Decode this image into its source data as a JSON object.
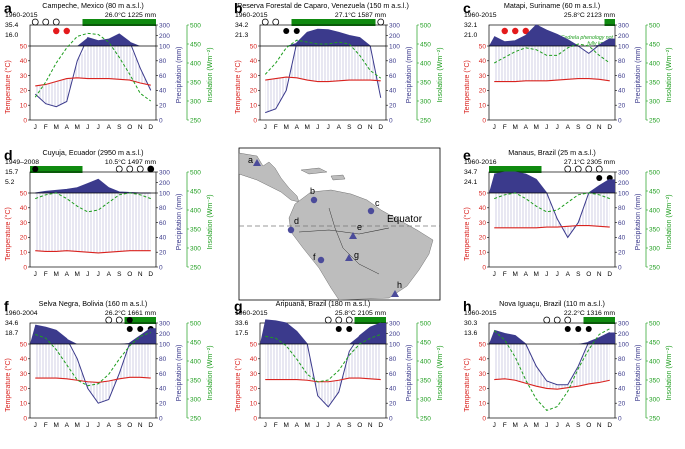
{
  "colors": {
    "precip_fill": "#3b3a8c",
    "precip_line": "#3b3a8c",
    "humid_hatch": "#c5c4de",
    "arid_fill": "#ffffff",
    "temperature": "#d9231f",
    "insolation": "#1f9e1f",
    "green_bar": "#0f8a0f",
    "red_dot": "#e41a1c",
    "map_land": "#bdbdbd",
    "map_marker": "#4b4b9a"
  },
  "axes": {
    "temperature_label": "Temperature (°C)",
    "precipitation_label": "Precipitation (mm)",
    "insolation_label": "Insolation (Wm⁻²)",
    "months": [
      "J",
      "F",
      "M",
      "A",
      "M",
      "J",
      "J",
      "A",
      "S",
      "O",
      "N",
      "D"
    ],
    "temp_ticks": [
      "0",
      "10",
      "20",
      "30",
      "40",
      "50"
    ],
    "precip_ticks": [
      "0",
      "20",
      "40",
      "60",
      "80",
      "100",
      "200",
      "300"
    ],
    "insol_ticks": [
      "250",
      "300",
      "350",
      "400",
      "450",
      "500"
    ]
  },
  "map": {
    "equator_label": "Equator",
    "markers": [
      "a",
      "b",
      "c",
      "d",
      "e",
      "f",
      "g",
      "h"
    ]
  },
  "chart_data": [
    {
      "letter": "a",
      "type": "climate-diagram",
      "title": "Campeche, Mexico (80 m a.s.l.)",
      "period": "1960-2015",
      "summary": "26.0°C 1225 mm",
      "max_temp": "35.4",
      "min_temp": "16.0",
      "green_bar_months": [
        6,
        12
      ],
      "open_dots_row1": [
        1,
        2,
        3
      ],
      "red_dots_row2": [
        3,
        4
      ],
      "filled_dots_row2": [],
      "open_dots_row2": [],
      "filled_dots_row1": [],
      "note": "",
      "precip": [
        35,
        22,
        18,
        25,
        80,
        180,
        150,
        165,
        215,
        140,
        70,
        40
      ],
      "temp": [
        23,
        24,
        26,
        28,
        28.5,
        28,
        28,
        28,
        27.5,
        27,
        25,
        23.5
      ],
      "insol": [
        310,
        350,
        400,
        440,
        470,
        478,
        475,
        455,
        415,
        370,
        320,
        300
      ]
    },
    {
      "letter": "b",
      "type": "climate-diagram",
      "title": "Reserva Forestal de Caparo, Venezuela (150 m a.s.l.)",
      "period": "1960-2015",
      "summary": "27.1°C 1587 mm",
      "max_temp": "34.2",
      "min_temp": "21.3",
      "green_bar_months": [
        4,
        11
      ],
      "open_dots_row1": [
        1,
        2,
        12
      ],
      "red_dots_row2": [],
      "filled_dots_row2": [
        3,
        4
      ],
      "open_dots_row2": [],
      "filled_dots_row1": [],
      "note": "",
      "precip": [
        10,
        15,
        40,
        130,
        230,
        260,
        255,
        230,
        200,
        180,
        100,
        30
      ],
      "temp": [
        27,
        28,
        29,
        28.5,
        27,
        26,
        26,
        26.5,
        27,
        27,
        27,
        26.5
      ],
      "insol": [
        370,
        400,
        440,
        460,
        455,
        450,
        450,
        455,
        450,
        420,
        380,
        360
      ]
    },
    {
      "letter": "c",
      "type": "climate-diagram",
      "title": "Matapi, Suriname (60 m a.s.l.)",
      "period": "1960-2015",
      "summary": "25.8°C 2123 mm",
      "max_temp": "32.1",
      "min_temp": "21.0",
      "green_bar_months": [
        12,
        12
      ],
      "open_dots_row1": [],
      "red_dots_row2": [
        2,
        3,
        4
      ],
      "filled_dots_row2": [],
      "open_dots_row2": [],
      "filled_dots_row1": [],
      "note": "Cedrela phenology not fully known",
      "precip": [
        190,
        140,
        150,
        200,
        300,
        250,
        210,
        160,
        100,
        90,
        110,
        170
      ],
      "temp": [
        26,
        26,
        26,
        26.5,
        26.5,
        26.5,
        27,
        27.5,
        28,
        28,
        27.5,
        26.5
      ],
      "insol": [
        400,
        415,
        430,
        440,
        435,
        420,
        420,
        440,
        450,
        445,
        420,
        400
      ]
    },
    {
      "letter": "d",
      "type": "climate-diagram",
      "title": "Cuyuja, Ecuador (2950 m a.s.l.)",
      "period": "1949–2008",
      "summary": "10.5°C 1497 mm",
      "max_temp": "15.7",
      "min_temp": "5.2",
      "green_bar_months": [
        1,
        5
      ],
      "open_dots_row1": [
        9,
        10,
        11,
        12
      ],
      "red_dots_row2": [],
      "filled_dots_row2": [],
      "open_dots_row2": [],
      "filled_dots_row1": [
        1,
        12
      ],
      "note": "",
      "precip": [
        100,
        115,
        125,
        135,
        150,
        190,
        230,
        150,
        110,
        105,
        100,
        100
      ],
      "temp": [
        11,
        10.5,
        10.5,
        11,
        10.5,
        10,
        9.5,
        10,
        10.5,
        11,
        11,
        11
      ],
      "insol": [
        430,
        440,
        445,
        430,
        410,
        395,
        400,
        420,
        440,
        445,
        440,
        430
      ]
    },
    {
      "letter": "e",
      "type": "climate-diagram",
      "title": "Manaus, Brazil (25 m a.s.l.)",
      "period": "1960-2016",
      "summary": "27.1°C 2305 mm",
      "max_temp": "34.7",
      "min_temp": "24.1",
      "green_bar_months": [
        1,
        5
      ],
      "open_dots_row1": [
        8,
        9,
        10,
        11
      ],
      "red_dots_row2": [],
      "filled_dots_row2": [
        11,
        12
      ],
      "open_dots_row2": [],
      "filled_dots_row1": [],
      "note": "",
      "precip": [
        280,
        300,
        300,
        280,
        230,
        100,
        65,
        40,
        60,
        100,
        170,
        230
      ],
      "temp": [
        26.5,
        26.5,
        26.5,
        26.5,
        26.5,
        27,
        27,
        27.5,
        28,
        28,
        27.5,
        27
      ],
      "insol": [
        430,
        440,
        445,
        430,
        410,
        395,
        400,
        420,
        440,
        445,
        440,
        430
      ]
    },
    {
      "letter": "f",
      "type": "climate-diagram",
      "title": "Selva Negra, Bolivia (160 m a.s.l.)",
      "period": "1960-2004",
      "summary": "26.2°C 1661 mm",
      "max_temp": "34.6",
      "min_temp": "18.7",
      "green_bar_months": [
        10,
        12
      ],
      "open_dots_row1": [
        8,
        9
      ],
      "red_dots_row2": [],
      "filled_dots_row2": [
        10,
        11,
        12
      ],
      "open_dots_row2": [],
      "filled_dots_row1": [
        10
      ],
      "note": "",
      "precip": [
        280,
        260,
        230,
        150,
        80,
        40,
        20,
        25,
        60,
        110,
        180,
        250
      ],
      "temp": [
        27,
        27,
        27,
        26.5,
        25.5,
        24.5,
        24,
        25,
        26.5,
        27.5,
        27.5,
        27
      ],
      "insol": [
        470,
        460,
        430,
        390,
        350,
        335,
        340,
        365,
        405,
        440,
        465,
        475
      ]
    },
    {
      "letter": "g",
      "type": "climate-diagram",
      "title": "Aripuanã, Brazil (180 m a.s.l.)",
      "period": "1960-2015",
      "summary": "25.8°C 2105 mm",
      "max_temp": "33.6",
      "min_temp": "17.5",
      "green_bar_months": [
        10,
        12
      ],
      "open_dots_row1": [
        7,
        8,
        9
      ],
      "red_dots_row2": [],
      "filled_dots_row2": [
        8,
        9
      ],
      "open_dots_row2": [],
      "filled_dots_row1": [],
      "note": "",
      "precip": [
        330,
        320,
        300,
        220,
        100,
        30,
        15,
        35,
        90,
        180,
        260,
        300
      ],
      "temp": [
        26,
        26,
        26,
        26,
        25.5,
        24.5,
        24.5,
        25.5,
        27,
        27,
        26.5,
        26
      ],
      "insol": [
        465,
        460,
        440,
        405,
        365,
        345,
        350,
        375,
        415,
        445,
        460,
        470
      ]
    },
    {
      "letter": "h",
      "type": "climate-diagram",
      "title": "Nova Iguaçu, Brazil (110 m a.s.l.)",
      "period": "1960-2015",
      "summary": "22.2°C 1316 mm",
      "max_temp": "30.3",
      "min_temp": "13.6",
      "green_bar_months": [
        10,
        12
      ],
      "open_dots_row1": [
        6,
        7,
        8
      ],
      "red_dots_row2": [],
      "filled_dots_row2": [
        8,
        9,
        10
      ],
      "open_dots_row2": [],
      "filled_dots_row1": [],
      "note": "",
      "precip": [
        230,
        200,
        180,
        100,
        70,
        50,
        45,
        45,
        70,
        120,
        160,
        210
      ],
      "temp": [
        26,
        26.5,
        25.5,
        23.5,
        21.5,
        20,
        19.5,
        20.5,
        21.5,
        23,
        24,
        25.5
      ],
      "insol": [
        480,
        455,
        410,
        350,
        300,
        270,
        280,
        320,
        380,
        430,
        470,
        485
      ]
    }
  ]
}
